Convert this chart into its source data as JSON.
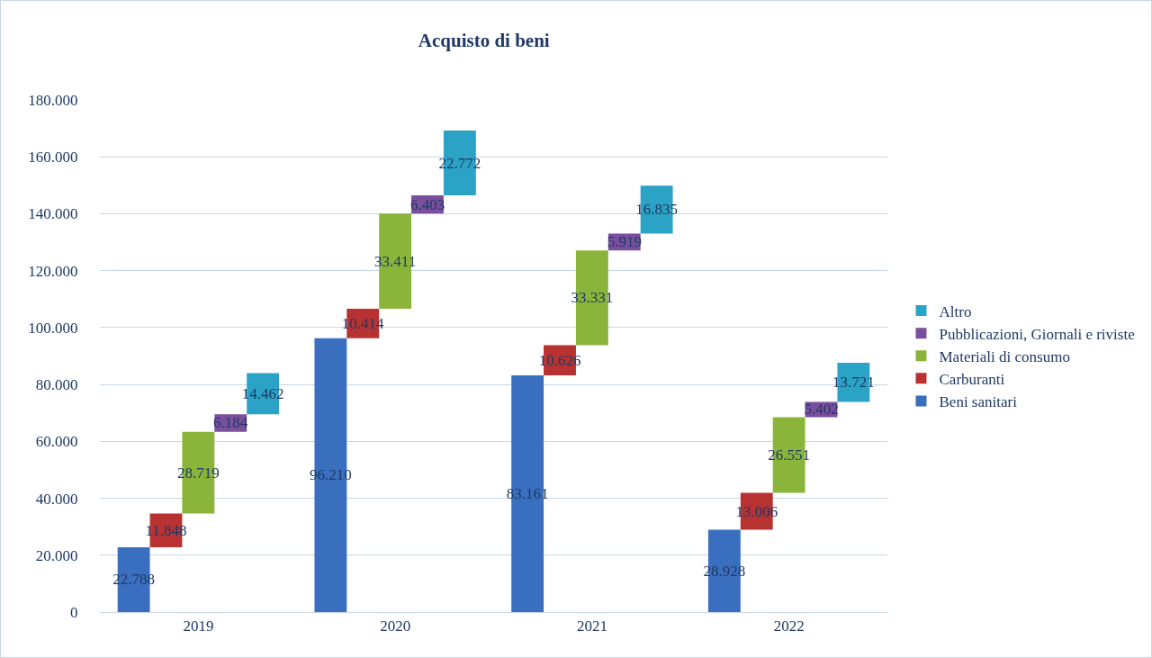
{
  "chart_data": {
    "type": "bar",
    "title": "Acquisto di beni",
    "categories": [
      "2019",
      "2020",
      "2021",
      "2022"
    ],
    "series": [
      {
        "name": "Beni sanitari",
        "color": "#3a6fbf",
        "values": [
          22788,
          96210,
          83161,
          28928
        ],
        "base": [
          0,
          0,
          0,
          0
        ],
        "value_labels": [
          "22.788",
          "96.210",
          "83.161",
          "28.928"
        ]
      },
      {
        "name": "Carburanti",
        "color": "#b83232",
        "values": [
          11848,
          10414,
          10626,
          13006
        ],
        "base": [
          22788,
          96210,
          83161,
          28928
        ],
        "value_labels": [
          "11.848",
          "10.414",
          "10.626",
          "13.006"
        ]
      },
      {
        "name": "Materiali di consumo",
        "color": "#8ab53a",
        "values": [
          28719,
          33411,
          33331,
          26551
        ],
        "base": [
          34636,
          106624,
          93787,
          41934
        ],
        "value_labels": [
          "28.719",
          "33.411",
          "33.331",
          "26.551"
        ]
      },
      {
        "name": "Pubblicazioni, Giornali e riviste",
        "color": "#7a4f9e",
        "values": [
          6184,
          6403,
          5919,
          5402
        ],
        "base": [
          63355,
          140035,
          127118,
          68485
        ],
        "value_labels": [
          "6.184",
          "6.403",
          "5.919",
          "5.402"
        ]
      },
      {
        "name": "Altro",
        "color": "#2ba3c6",
        "values": [
          14462,
          22772,
          16835,
          13721
        ],
        "base": [
          69539,
          146438,
          133037,
          73887
        ],
        "value_labels": [
          "14.462",
          "22.772",
          "16.835",
          "13.721"
        ]
      }
    ],
    "ylim": [
      0,
      180000
    ],
    "yticks": [
      0,
      {
        "value": 20000,
        "label": "20.000"
      },
      {
        "value": 40000,
        "label": "40.000"
      },
      {
        "value": 60000,
        "label": "60.000"
      },
      {
        "value": 80000,
        "label": "80.000"
      },
      {
        "value": 100000,
        "label": "100.000"
      },
      {
        "value": 120000,
        "label": "120.000"
      },
      {
        "value": 140000,
        "label": "140.000"
      },
      {
        "value": 160000,
        "label": "160.000"
      },
      {
        "value": 180000,
        "label": "180.000"
      }
    ],
    "grid": "y",
    "legend": "right"
  }
}
